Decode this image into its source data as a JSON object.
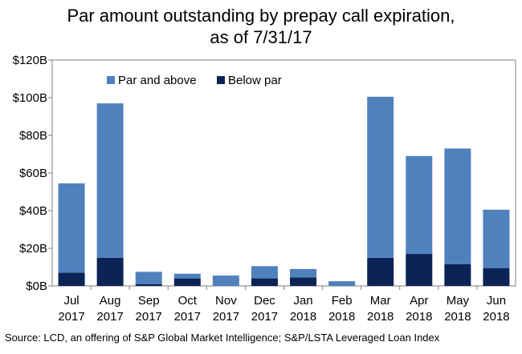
{
  "title_line1": "Par amount outstanding by prepay call expiration,",
  "title_line2": "as of 7/31/17",
  "source": "Source: LCD, an offering of S&P Global Market Intelligence;  S&P/LSTA Leveraged Loan Index",
  "chart_data": {
    "type": "bar",
    "stacked": true,
    "title": "Par amount outstanding by prepay call expiration, as of 7/31/17",
    "categories": [
      [
        "Jul",
        "2017"
      ],
      [
        "Aug",
        "2017"
      ],
      [
        "Sep",
        "2017"
      ],
      [
        "Oct",
        "2017"
      ],
      [
        "Nov",
        "2017"
      ],
      [
        "Dec",
        "2017"
      ],
      [
        "Jan",
        "2018"
      ],
      [
        "Feb",
        "2018"
      ],
      [
        "Mar",
        "2018"
      ],
      [
        "Apr",
        "2018"
      ],
      [
        "May",
        "2018"
      ],
      [
        "Jun",
        "2018"
      ]
    ],
    "series": [
      {
        "name": "Below par",
        "color": "#0c2355",
        "values": [
          7,
          15,
          1,
          4,
          0,
          4,
          4.5,
          0,
          15,
          17,
          11.5,
          9.5
        ]
      },
      {
        "name": "Par and above",
        "color": "#4f81bd",
        "values": [
          47.5,
          82,
          6.5,
          2.5,
          5.5,
          6.5,
          4.5,
          2.5,
          85.5,
          52,
          61.5,
          31
        ]
      }
    ],
    "legend_order": [
      "Par and above",
      "Below par"
    ],
    "legend_position": "top-left",
    "yticks": [
      0,
      20,
      40,
      60,
      80,
      100,
      120
    ],
    "ytick_labels": [
      "$0B",
      "$20B",
      "$40B",
      "$60B",
      "$80B",
      "$100B",
      "$120B"
    ],
    "ylim": [
      0,
      120
    ],
    "xlabel": "",
    "ylabel": "",
    "grid": false
  }
}
